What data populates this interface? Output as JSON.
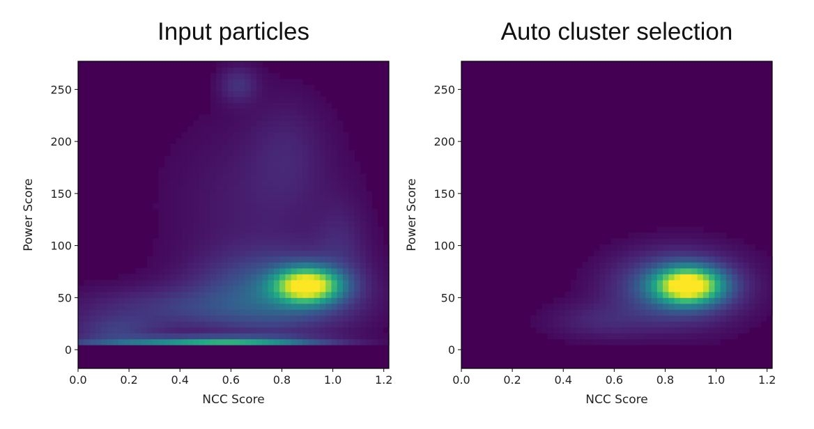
{
  "chart_data": [
    {
      "type": "heatmap",
      "title": "Input particles",
      "xlabel": "NCC Score",
      "ylabel": "Power Score",
      "xlim": [
        0.0,
        1.22
      ],
      "ylim": [
        -18,
        277
      ],
      "xticks": [
        0.0,
        0.2,
        0.4,
        0.6,
        0.8,
        1.0,
        1.2
      ],
      "xtick_labels": [
        "0.0",
        "0.2",
        "0.4",
        "0.6",
        "0.8",
        "1.0",
        "1.2"
      ],
      "yticks": [
        0,
        50,
        100,
        150,
        200,
        250
      ],
      "ytick_labels": [
        "0",
        "50",
        "100",
        "150",
        "200",
        "250"
      ],
      "colormap": "viridis",
      "density_components": [
        {
          "x": 0.9,
          "y": 62,
          "sx": 0.085,
          "sy": 11,
          "weight": 1.0
        },
        {
          "x": 0.78,
          "y": 55,
          "sx": 0.2,
          "sy": 25,
          "weight": 0.25
        },
        {
          "x": 0.4,
          "y": 40,
          "sx": 0.28,
          "sy": 14,
          "weight": 0.11
        },
        {
          "x": 0.7,
          "y": 140,
          "sx": 0.22,
          "sy": 55,
          "weight": 0.05
        },
        {
          "x": 0.62,
          "y": 8,
          "sx": 0.22,
          "sy": 3,
          "weight": 0.4
        },
        {
          "x": 0.35,
          "y": 8,
          "sx": 0.3,
          "sy": 3,
          "weight": 0.22
        },
        {
          "x": 0.15,
          "y": 18,
          "sx": 0.12,
          "sy": 10,
          "weight": 0.12
        },
        {
          "x": 0.63,
          "y": 255,
          "sx": 0.05,
          "sy": 12,
          "weight": 0.1
        },
        {
          "x": 0.82,
          "y": 190,
          "sx": 0.1,
          "sy": 35,
          "weight": 0.05
        },
        {
          "x": 1.03,
          "y": 100,
          "sx": 0.07,
          "sy": 30,
          "weight": 0.06
        }
      ],
      "y_cutoff": 5
    },
    {
      "type": "heatmap",
      "title": "Auto cluster selection",
      "xlabel": "NCC Score",
      "ylabel": "Power Score",
      "xlim": [
        0.0,
        1.22
      ],
      "ylim": [
        -18,
        277
      ],
      "xticks": [
        0.0,
        0.2,
        0.4,
        0.6,
        0.8,
        1.0,
        1.2
      ],
      "xtick_labels": [
        "0.0",
        "0.2",
        "0.4",
        "0.6",
        "0.8",
        "1.0",
        "1.2"
      ],
      "yticks": [
        0,
        50,
        100,
        150,
        200,
        250
      ],
      "ytick_labels": [
        "0",
        "50",
        "100",
        "150",
        "200",
        "250"
      ],
      "colormap": "viridis",
      "density_components": [
        {
          "x": 0.89,
          "y": 62,
          "sx": 0.085,
          "sy": 11,
          "weight": 1.0
        },
        {
          "x": 0.85,
          "y": 60,
          "sx": 0.16,
          "sy": 22,
          "weight": 0.28
        },
        {
          "x": 0.55,
          "y": 28,
          "sx": 0.14,
          "sy": 12,
          "weight": 0.07
        }
      ],
      "y_cutoff": 5
    }
  ]
}
